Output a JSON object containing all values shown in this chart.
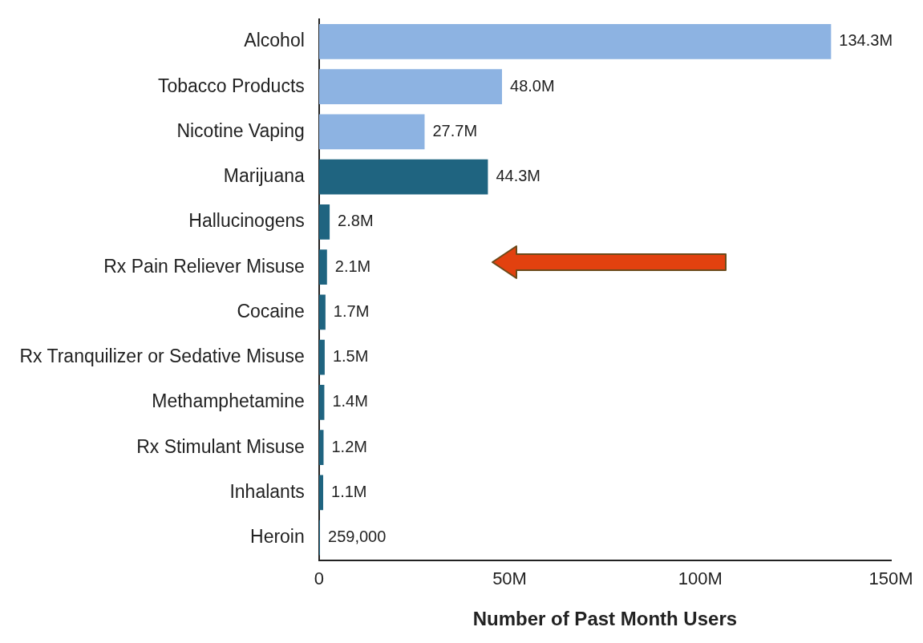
{
  "chart_data": {
    "type": "bar",
    "orientation": "horizontal",
    "xlabel": "Number of Past Month Users",
    "categories": [
      "Alcohol",
      "Tobacco Products",
      "Nicotine Vaping",
      "Marijuana",
      "Hallucinogens",
      "Rx Pain Reliever Misuse",
      "Cocaine",
      "Rx Tranquilizer or Sedative Misuse",
      "Methamphetamine",
      "Rx Stimulant Misuse",
      "Inhalants",
      "Heroin"
    ],
    "values": [
      134300000,
      48000000,
      27700000,
      44300000,
      2800000,
      2100000,
      1700000,
      1500000,
      1400000,
      1200000,
      1100000,
      259000
    ],
    "value_labels": [
      "134.3M",
      "48.0M",
      "27.7M",
      "44.3M",
      "2.8M",
      "2.1M",
      "1.7M",
      "1.5M",
      "1.4M",
      "1.2M",
      "1.1M",
      "259,000"
    ],
    "colors": [
      "#8db3e2",
      "#8db3e2",
      "#8db3e2",
      "#1f6480",
      "#1f6480",
      "#1f6480",
      "#1f6480",
      "#1f6480",
      "#1f6480",
      "#1f6480",
      "#1f6480",
      "#1f6480"
    ],
    "xlim": [
      0,
      150000000
    ],
    "xticks": [
      {
        "value": 0,
        "label": "0"
      },
      {
        "value": 50000000,
        "label": "50M"
      },
      {
        "value": 100000000,
        "label": "100M"
      },
      {
        "value": 150000000,
        "label": "150M"
      }
    ]
  }
}
